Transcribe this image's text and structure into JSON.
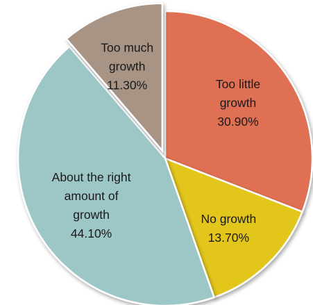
{
  "chart_data": {
    "type": "pie",
    "title": "",
    "series": [
      {
        "values": [
          30.9,
          13.7,
          44.1,
          11.3
        ],
        "categories": [
          "Too little growth",
          "No growth",
          "About the right amount of growth",
          "Too much growth"
        ]
      }
    ],
    "categories": [
      "Too little growth",
      "No growth",
      "About the right amount of growth",
      "Too much growth"
    ],
    "values": [
      30.9,
      13.7,
      44.1,
      11.3
    ],
    "value_labels": [
      "30.90%",
      "13.70%",
      "44.10%",
      "11.30%"
    ],
    "slice_text": [
      [
        "Too little",
        "growth",
        "30.90%"
      ],
      [
        "No growth",
        "13.70%"
      ],
      [
        "About the right",
        "amount of",
        "growth",
        "44.10%"
      ],
      [
        "Too much",
        "growth",
        "11.30%"
      ]
    ],
    "colors": [
      "#E07052",
      "#E3C61C",
      "#9DC6C6",
      "#A79485"
    ],
    "exploded_slice": "Too much growth",
    "legend": "none",
    "start_angle": "12 o'clock",
    "direction": "clockwise"
  }
}
